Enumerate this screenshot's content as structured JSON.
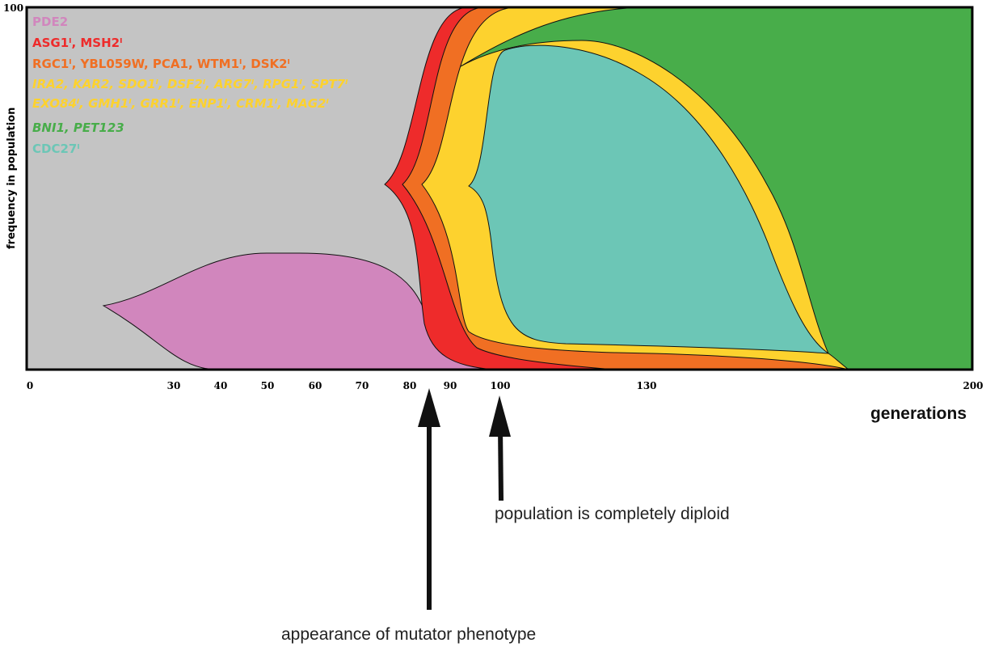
{
  "chart_data": {
    "type": "area",
    "subtype": "muller-plot",
    "xlabel": "generations",
    "ylabel": "frequency in population",
    "xlim": [
      0,
      200
    ],
    "ylim": [
      0,
      100
    ],
    "y_tick_labels": [
      "100"
    ],
    "x_tick_labels": [
      "0",
      "30",
      "40",
      "50",
      "60",
      "70",
      "80",
      "90",
      "100",
      "130",
      "200"
    ],
    "background_color": "#c4c4c4",
    "series": [
      {
        "name": "PDE2",
        "color": "#d186bd",
        "arises": 16,
        "peak": 32,
        "extinct": 98
      },
      {
        "name": "ASG1, MSH2",
        "color": "#ee2b2b",
        "arises": 76,
        "peak": 100
      },
      {
        "name": "RGC1, YBL059W, PCA1, WTM1, DSK2",
        "color": "#f06f23",
        "arises": 80,
        "peak": 100
      },
      {
        "name": "IRA2, KAR2, SDO1, DSF2, ARG7, RPG1, SPT7, EXO84, GMH1, GRR1, ENP1, CRM1, MAG2",
        "color": "#fdd22e",
        "arises": 84,
        "peak": 100
      },
      {
        "name": "BNI1, PET123",
        "color": "#48ad4a",
        "arises": 92,
        "peak": 100,
        "fixed": 175
      },
      {
        "name": "CDC27",
        "color": "#6cc6b6",
        "arises": 93,
        "peak": 90,
        "extinct": 175
      }
    ]
  },
  "legend": [
    {
      "text": "PDE2",
      "color": "#d186bd",
      "italic": false
    },
    {
      "text": "ASG1ˡ, MSH2ˡ",
      "color": "#ee2b2b",
      "italic": false
    },
    {
      "text": "RGC1ˡ, YBL059W, PCA1, WTM1ˡ, DSK2ˡ",
      "color": "#f06f23",
      "italic": false
    },
    {
      "text": "IRA2, KAR2, SDO1ˡ, DSF2ˡ, ARG7ˡ, RPG1ˡ, SPT7ˡ",
      "color": "#fdd22e",
      "italic": true
    },
    {
      "text": "EXO84ˡ, GMH1ˡ, GRR1ˡ, ENP1ˡ, CRM1ˡ, MAG2ˡ",
      "color": "#fdd22e",
      "italic": true
    },
    {
      "text": "BNI1, PET123",
      "color": "#48ad4a",
      "italic": true
    },
    {
      "text": "CDC27ˡ",
      "color": "#6cc6b6",
      "italic": false
    }
  ],
  "annotations": {
    "mutator": {
      "text": "appearance of mutator phenotype",
      "generation": 86
    },
    "diploid": {
      "text": "population is completely diploid",
      "generation": 100
    }
  }
}
